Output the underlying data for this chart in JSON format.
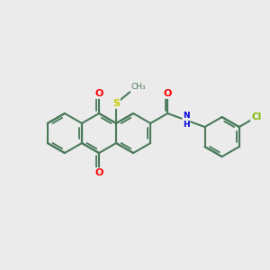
{
  "background_color": "#ebebeb",
  "bond_color": "#4a7a5a",
  "atom_colors": {
    "O": "#ff0000",
    "N": "#0000dd",
    "S": "#cccc00",
    "Cl": "#7fba00",
    "C": "#4a7a5a"
  },
  "figsize": [
    3.0,
    3.0
  ],
  "dpi": 100,
  "bond_lw": 1.5,
  "bl": 0.22
}
